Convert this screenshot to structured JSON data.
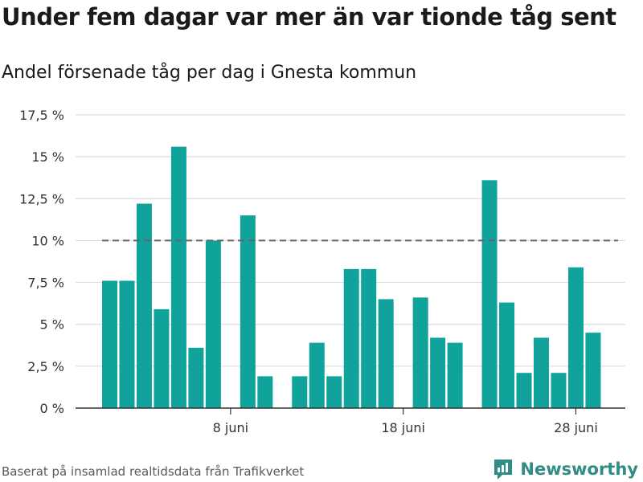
{
  "title": "Under fem dagar var mer än var tionde tåg sent",
  "subtitle": "Andel försenade tåg per dag i Gnesta kommun",
  "footer": {
    "source": "Baserat på insamlad realtidsdata från Trafikverket",
    "brand": "Newsworthy",
    "brand_icon": "newsworthy-logo-icon"
  },
  "colors": {
    "bar": "#0fa39b",
    "reference_line": "#666666",
    "grid": "#dddddd",
    "axis": "#333333",
    "brand": "#2f8c86"
  },
  "chart_data": {
    "type": "bar",
    "title": "Under fem dagar var mer än var tionde tåg sent",
    "subtitle": "Andel försenade tåg per dag i Gnesta kommun",
    "x": [
      1,
      2,
      3,
      4,
      5,
      6,
      7,
      8,
      9,
      10,
      11,
      12,
      13,
      14,
      15,
      16,
      17,
      18,
      19,
      20,
      21,
      22,
      23,
      24,
      25,
      26,
      27,
      28,
      29,
      30
    ],
    "values": [
      7.6,
      7.6,
      12.2,
      5.9,
      15.6,
      3.6,
      10.0,
      null,
      11.5,
      1.9,
      null,
      1.9,
      3.9,
      1.9,
      8.3,
      8.3,
      6.5,
      null,
      6.6,
      4.2,
      3.9,
      null,
      13.6,
      6.3,
      2.1,
      4.2,
      2.1,
      8.4,
      4.5,
      null
    ],
    "xlabel": "",
    "ylabel": "",
    "ylim": [
      0,
      17.5
    ],
    "yticks": [
      0,
      2.5,
      5,
      7.5,
      10,
      12.5,
      15,
      17.5
    ],
    "ytick_labels": [
      "0 %",
      "2,5 %",
      "5 %",
      "7,5 %",
      "10 %",
      "12,5 %",
      "15 %",
      "17,5 %"
    ],
    "xticks": [
      8,
      18,
      28
    ],
    "xtick_labels": [
      "8 juni",
      "18 juni",
      "28 juni"
    ],
    "reference_line": {
      "y": 10,
      "style": "dashed"
    },
    "grid": true,
    "legend": "none"
  }
}
